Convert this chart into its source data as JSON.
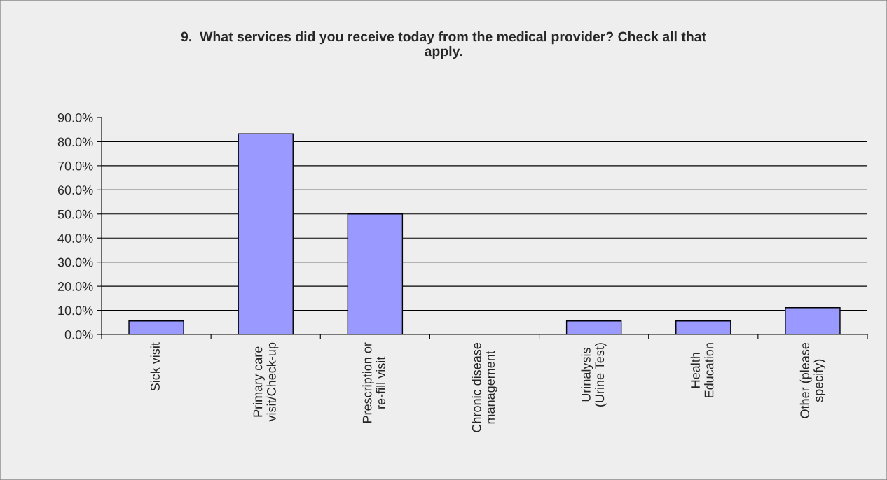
{
  "chart_data": {
    "type": "bar",
    "title": "9.  What services did you receive today from the medical provider? Check all that\napply.",
    "categories": [
      "Sick visit",
      "Primary care\nvisit/Check-up",
      "Prescription or\nre-fill visit",
      "Chronic disease\nmanagement",
      "Urinalysis\n(Urine Test)",
      "Health\nEducation",
      "Other (please\nspecify)"
    ],
    "values": [
      5.6,
      83.3,
      50.0,
      0,
      5.6,
      5.6,
      11.1
    ],
    "color": "#9999ff",
    "ylim": [
      0,
      90
    ],
    "yticks": [
      {
        "value": 0,
        "label": "0.0%"
      },
      {
        "value": 10,
        "label": "10.0%"
      },
      {
        "value": 20,
        "label": "20.0%"
      },
      {
        "value": 30,
        "label": "30.0%"
      },
      {
        "value": 40,
        "label": "40.0%"
      },
      {
        "value": 50,
        "label": "50.0%"
      },
      {
        "value": 60,
        "label": "60.0%"
      },
      {
        "value": 70,
        "label": "70.0%"
      },
      {
        "value": 80,
        "label": "80.0%"
      },
      {
        "value": 90,
        "label": "90.0%"
      }
    ],
    "grid": "y"
  }
}
